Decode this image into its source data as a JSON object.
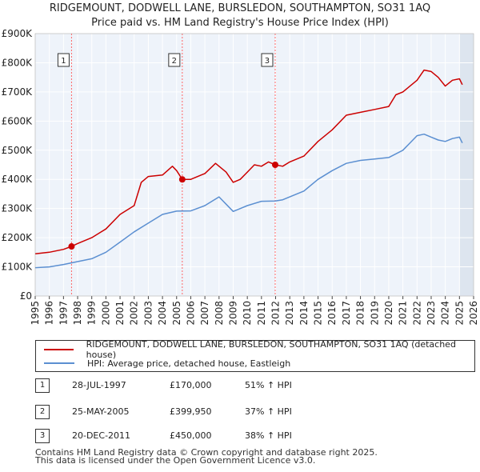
{
  "header": {
    "title_line1": "RIDGEMOUNT, DODWELL LANE, BURSLEDON, SOUTHAMPTON, SO31 1AQ",
    "title_line2": "Price paid vs. HM Land Registry's House Price Index (HPI)"
  },
  "colors": {
    "property": "#cc0000",
    "hpi": "#5b8fd1",
    "marker_line": "#ff6666",
    "future_shade": "#dde5ef"
  },
  "legend": {
    "property_label": "RIDGEMOUNT, DODWELL LANE, BURSLEDON, SOUTHAMPTON, SO31 1AQ (detached house)",
    "hpi_label": "HPI: Average price, detached house, Eastleigh"
  },
  "sales": [
    {
      "num": "1",
      "date": "28-JUL-1997",
      "price": "£170,000",
      "hpi": "51% ↑ HPI",
      "x": 1997.57,
      "y": 170000
    },
    {
      "num": "2",
      "date": "25-MAY-2005",
      "price": "£399,950",
      "hpi": "37% ↑ HPI",
      "x": 2005.4,
      "y": 399950
    },
    {
      "num": "3",
      "date": "20-DEC-2011",
      "price": "£450,000",
      "hpi": "38% ↑ HPI",
      "x": 2011.97,
      "y": 450000
    }
  ],
  "footer": {
    "line1": "Contains HM Land Registry data © Crown copyright and database right 2025.",
    "line2": "This data is licensed under the Open Government Licence v3.0."
  },
  "chart_data": {
    "type": "line",
    "xlim": [
      1995,
      2026
    ],
    "ylim": [
      0,
      900000
    ],
    "y_ticks": [
      0,
      100000,
      200000,
      300000,
      400000,
      500000,
      600000,
      700000,
      800000,
      900000
    ],
    "y_tick_labels": [
      "£0",
      "£100K",
      "£200K",
      "£300K",
      "£400K",
      "£500K",
      "£600K",
      "£700K",
      "£800K",
      "£900K"
    ],
    "x_ticks": [
      "1995",
      "1996",
      "1997",
      "1998",
      "1999",
      "2000",
      "2001",
      "2002",
      "2003",
      "2004",
      "2005",
      "2006",
      "2007",
      "2008",
      "2009",
      "2010",
      "2011",
      "2012",
      "2013",
      "2014",
      "2015",
      "2016",
      "2017",
      "2018",
      "2019",
      "2020",
      "2021",
      "2022",
      "2023",
      "2024",
      "2025",
      "2026"
    ],
    "future_from": 2025.0,
    "series": [
      {
        "name": "RIDGEMOUNT, DODWELL LANE, BURSLEDON, SOUTHAMPTON, SO31 1AQ (detached house)",
        "x": [
          1995.0,
          1996.0,
          1997.0,
          1997.57,
          1998.0,
          1999.0,
          2000.0,
          2001.0,
          2002.0,
          2002.5,
          2003.0,
          2004.0,
          2004.7,
          2005.0,
          2005.4,
          2006.0,
          2007.0,
          2007.75,
          2008.5,
          2009.0,
          2009.5,
          2010.0,
          2010.5,
          2011.0,
          2011.5,
          2011.97,
          2012.5,
          2013.0,
          2014.0,
          2015.0,
          2016.0,
          2017.0,
          2018.0,
          2019.0,
          2020.0,
          2020.5,
          2021.0,
          2021.5,
          2022.0,
          2022.5,
          2023.0,
          2023.5,
          2024.0,
          2024.5,
          2025.0,
          2025.2
        ],
        "values": [
          145000,
          150000,
          160000,
          170000,
          180000,
          200000,
          230000,
          280000,
          310000,
          390000,
          410000,
          415000,
          445000,
          430000,
          399950,
          400000,
          420000,
          455000,
          425000,
          390000,
          400000,
          425000,
          450000,
          445000,
          460000,
          450000,
          445000,
          460000,
          480000,
          530000,
          570000,
          620000,
          630000,
          640000,
          650000,
          690000,
          700000,
          720000,
          740000,
          775000,
          770000,
          750000,
          720000,
          740000,
          745000,
          725000
        ]
      },
      {
        "name": "HPI: Average price, detached house, Eastleigh",
        "x": [
          1995.0,
          1996.0,
          1997.0,
          1998.0,
          1999.0,
          2000.0,
          2001.0,
          2002.0,
          2003.0,
          2004.0,
          2005.0,
          2006.0,
          2007.0,
          2008.0,
          2008.5,
          2009.0,
          2009.5,
          2010.0,
          2011.0,
          2011.97,
          2012.5,
          2013.0,
          2014.0,
          2015.0,
          2016.0,
          2017.0,
          2018.0,
          2019.0,
          2020.0,
          2021.0,
          2022.0,
          2022.5,
          2023.0,
          2023.5,
          2024.0,
          2024.5,
          2025.0,
          2025.2
        ],
        "values": [
          97000,
          100000,
          108000,
          118000,
          128000,
          150000,
          185000,
          220000,
          250000,
          280000,
          291000,
          292000,
          310000,
          340000,
          315000,
          290000,
          300000,
          310000,
          325000,
          326000,
          330000,
          340000,
          360000,
          400000,
          430000,
          455000,
          465000,
          470000,
          475000,
          500000,
          550000,
          555000,
          545000,
          535000,
          530000,
          540000,
          545000,
          525000
        ]
      }
    ]
  }
}
